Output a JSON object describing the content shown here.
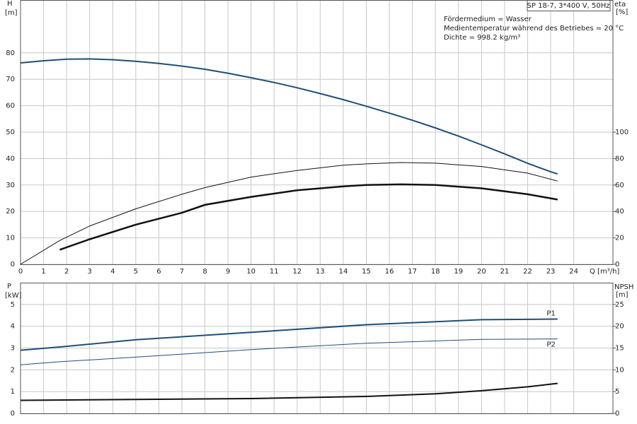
{
  "chart_data": [
    {
      "type": "line",
      "title": "SP 18-7, 3*400 V, 50Hz",
      "annotations": [
        "Fördermedium = Wasser",
        "Medientemperatur während des Betriebes = 20 °C",
        "Dichte = 998.2 kg/m³"
      ],
      "xlabel": "Q [m³/h]",
      "ylabel": "H",
      "yunit": "[m]",
      "y2label": "eta",
      "y2unit": "[%]",
      "xlim": [
        0,
        25.7
      ],
      "xticks": [
        0,
        1,
        2,
        3,
        4,
        5,
        6,
        7,
        8,
        9,
        10,
        11,
        12,
        13,
        14,
        15,
        16,
        17,
        18,
        19,
        20,
        21,
        22,
        23,
        24
      ],
      "ylim": [
        0,
        100
      ],
      "yticks": [
        0,
        10,
        20,
        30,
        40,
        50,
        60,
        70,
        80
      ],
      "y2lim": [
        0,
        200
      ],
      "y2ticks": [
        0,
        20,
        40,
        60,
        80,
        100
      ],
      "grid": true,
      "series": [
        {
          "color": "#1f4e79",
          "line_width": 2,
          "x": [
            0,
            1,
            2,
            3,
            4,
            5,
            6,
            7,
            8,
            9,
            10,
            11,
            12,
            13,
            14,
            15,
            16,
            17,
            18,
            19,
            20,
            21,
            22,
            23,
            23.3
          ],
          "values": [
            76.2,
            77,
            77.6,
            77.7,
            77.4,
            76.8,
            76,
            75,
            73.8,
            72.3,
            70.6,
            68.8,
            66.8,
            64.6,
            62.3,
            59.8,
            57.2,
            54.5,
            51.6,
            48.5,
            45.2,
            41.8,
            38.2,
            35,
            34.2
          ]
        },
        {
          "color": "#111111",
          "line_width": 1,
          "axis": "y2",
          "x": [
            0,
            1.7,
            3,
            5,
            7,
            8,
            10,
            12,
            14,
            15,
            16.5,
            18,
            20,
            22,
            23.3
          ],
          "values": [
            0,
            18,
            29,
            42,
            53,
            58,
            66,
            71,
            75,
            76,
            77,
            76.5,
            74,
            69,
            63
          ]
        },
        {
          "color": "#111111",
          "line_width": 2.5,
          "axis": "y2",
          "x": [
            1.7,
            3,
            5,
            7,
            8,
            10,
            12,
            14,
            15,
            16.5,
            18,
            20,
            22,
            23.3
          ],
          "values": [
            11,
            19,
            30,
            39,
            45,
            51,
            56,
            59,
            60,
            60.5,
            60,
            57.5,
            53,
            49
          ]
        }
      ]
    },
    {
      "type": "line",
      "ylabel": "P",
      "yunit": "[kW]",
      "y2label": "NPSH",
      "y2unit": "[m]",
      "xlim": [
        0,
        25.7
      ],
      "ylim": [
        0,
        6
      ],
      "yticks": [
        0,
        1,
        2,
        3,
        4,
        5
      ],
      "y2lim": [
        0,
        30
      ],
      "y2ticks": [
        0,
        5,
        10,
        15,
        20,
        25
      ],
      "grid": true,
      "series": [
        {
          "name": "P1",
          "color": "#1f4e79",
          "line_width": 2,
          "x": [
            0,
            1.7,
            5,
            10,
            15,
            20,
            23.3
          ],
          "values": [
            2.9,
            3.05,
            3.38,
            3.72,
            4.07,
            4.3,
            4.33
          ]
        },
        {
          "name": "P2",
          "color": "#1f4e79",
          "line_width": 1,
          "x": [
            0,
            1.7,
            5,
            10,
            15,
            20,
            23.3
          ],
          "values": [
            2.23,
            2.37,
            2.58,
            2.93,
            3.22,
            3.4,
            3.42
          ]
        },
        {
          "color": "#111111",
          "line_width": 2,
          "axis": "y2",
          "x": [
            0,
            5,
            10,
            15,
            18,
            20,
            22,
            23.3
          ],
          "values": [
            3.0,
            3.2,
            3.4,
            3.9,
            4.5,
            5.2,
            6.1,
            6.9
          ]
        }
      ]
    }
  ]
}
